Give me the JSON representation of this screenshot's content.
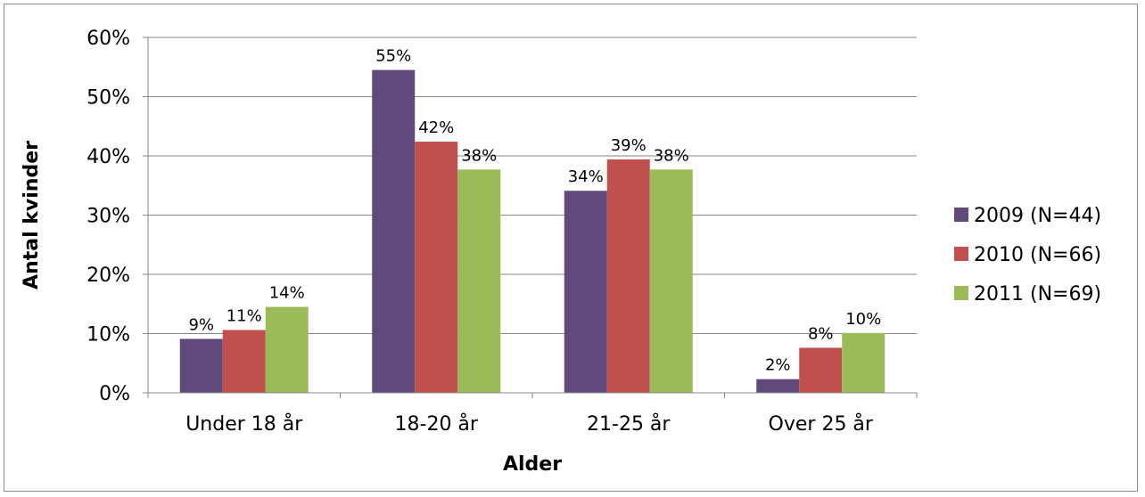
{
  "chart_data": {
    "type": "bar",
    "title": "",
    "xlabel": "Alder",
    "ylabel": "Antal kvinder",
    "categories": [
      "Under 18 år",
      "18-20 år",
      "21-25 år",
      "Over 25 år"
    ],
    "series": [
      {
        "name": "2009 (N=44)",
        "color": "#604A7B",
        "values": [
          9.1,
          54.5,
          34.1,
          2.3
        ],
        "labels": [
          "9%",
          "55%",
          "34%",
          "2%"
        ]
      },
      {
        "name": "2010 (N=66)",
        "color": "#C0504D",
        "values": [
          10.6,
          42.4,
          39.4,
          7.6
        ],
        "labels": [
          "11%",
          "42%",
          "39%",
          "8%"
        ]
      },
      {
        "name": "2011 (N=69)",
        "color": "#9BBB59",
        "values": [
          14.5,
          37.7,
          37.7,
          10.1
        ],
        "labels": [
          "14%",
          "38%",
          "38%",
          "10%"
        ]
      }
    ],
    "yticks": [
      "0%",
      "10%",
      "20%",
      "30%",
      "40%",
      "50%",
      "60%"
    ],
    "ylim": [
      0,
      60
    ],
    "grid": true,
    "legend_position": "right"
  }
}
